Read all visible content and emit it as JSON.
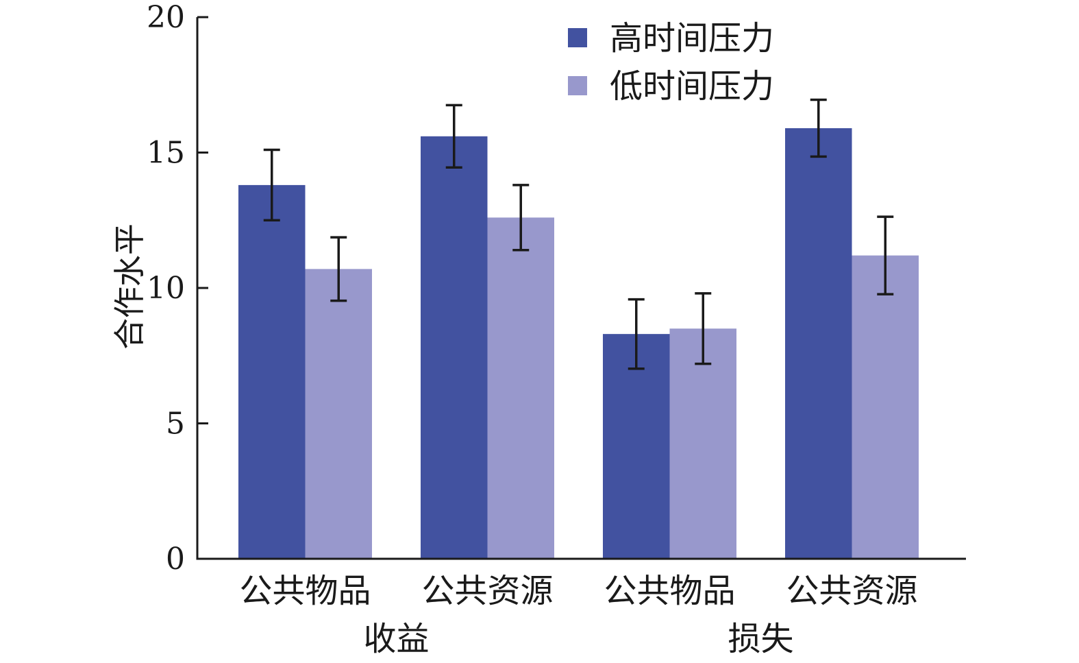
{
  "chart_data": {
    "type": "bar",
    "ylabel": "合作水平",
    "ylim": [
      0,
      20
    ],
    "yticks": [
      "0",
      "5",
      "10",
      "15",
      "20"
    ],
    "grid": false,
    "legend_position": "top-right",
    "categories": [
      "公共物品",
      "公共资源",
      "公共物品",
      "公共资源"
    ],
    "groups": [
      {
        "label": "收益",
        "categories": [
          0,
          1
        ]
      },
      {
        "label": "损失",
        "categories": [
          2,
          3
        ]
      }
    ],
    "series": [
      {
        "name": "高时间压力",
        "color": "#4252a0",
        "values": [
          13.8,
          15.6,
          8.3,
          15.9
        ],
        "errors": [
          1.3,
          1.15,
          1.28,
          1.05
        ]
      },
      {
        "name": "低时间压力",
        "color": "#9898cc",
        "values": [
          10.7,
          12.6,
          8.5,
          11.2
        ],
        "errors": [
          1.17,
          1.2,
          1.3,
          1.43
        ]
      }
    ]
  }
}
